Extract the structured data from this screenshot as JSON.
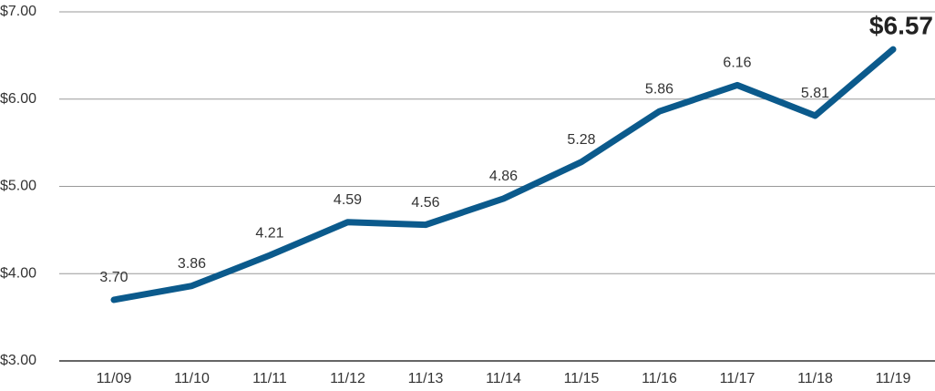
{
  "chart_data": {
    "type": "line",
    "categories": [
      "11/09",
      "11/10",
      "11/11",
      "11/12",
      "11/13",
      "11/14",
      "11/15",
      "11/16",
      "11/17",
      "11/18",
      "11/19"
    ],
    "values": [
      3.7,
      3.86,
      4.21,
      4.59,
      4.56,
      4.86,
      5.28,
      5.86,
      6.16,
      5.81,
      6.57
    ],
    "value_labels": [
      "3.70",
      "3.86",
      "4.21",
      "4.59",
      "4.56",
      "4.86",
      "5.28",
      "5.86",
      "6.16",
      "5.81",
      "$6.57"
    ],
    "color": "#0b5a8c",
    "ylim": [
      3,
      7
    ],
    "yticks": [
      {
        "value": 3,
        "label": "$3.00"
      },
      {
        "value": 4,
        "label": "$4.00"
      },
      {
        "value": 5,
        "label": "$5.00"
      },
      {
        "value": 6,
        "label": "$6.00"
      },
      {
        "value": 7,
        "label": "$7.00"
      }
    ],
    "grid": true
  }
}
